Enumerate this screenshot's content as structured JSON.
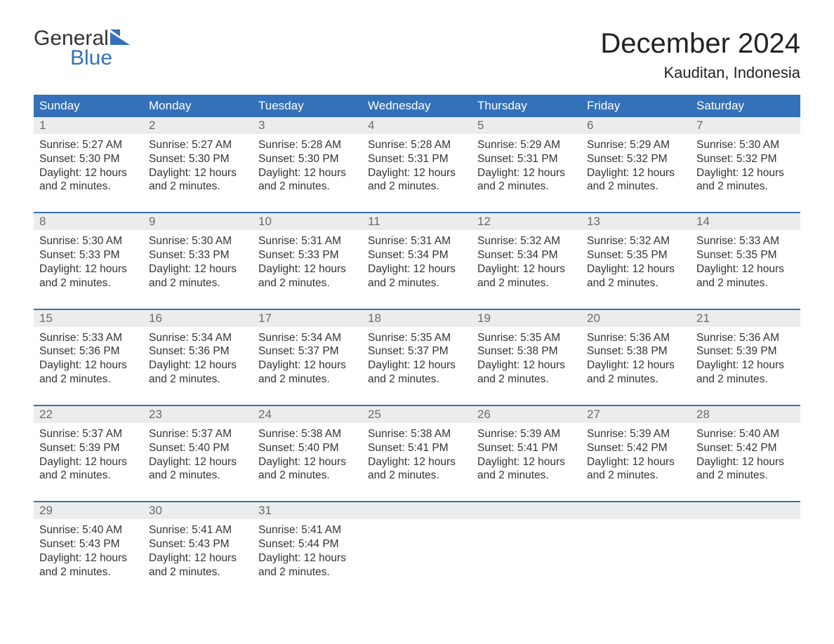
{
  "brand": {
    "word1": "General",
    "word2": "Blue",
    "text_color": "#333333",
    "accent_color": "#3571b8"
  },
  "title": "December 2024",
  "location": "Kauditan, Indonesia",
  "colors": {
    "header_bg": "#3571b8",
    "header_text": "#ffffff",
    "daynum_bg": "#ececec",
    "daynum_text": "#6b6b6b",
    "body_text": "#333333",
    "week_border": "#3571b8",
    "background": "#ffffff"
  },
  "fonts": {
    "title_size_pt": 30,
    "location_size_pt": 17,
    "header_size_pt": 13,
    "body_size_pt": 12
  },
  "day_names": [
    "Sunday",
    "Monday",
    "Tuesday",
    "Wednesday",
    "Thursday",
    "Friday",
    "Saturday"
  ],
  "daylight_text": "Daylight: 12 hours and 2 minutes.",
  "weeks": [
    {
      "days": [
        {
          "n": 1,
          "sunrise": "5:27 AM",
          "sunset": "5:30 PM"
        },
        {
          "n": 2,
          "sunrise": "5:27 AM",
          "sunset": "5:30 PM"
        },
        {
          "n": 3,
          "sunrise": "5:28 AM",
          "sunset": "5:30 PM"
        },
        {
          "n": 4,
          "sunrise": "5:28 AM",
          "sunset": "5:31 PM"
        },
        {
          "n": 5,
          "sunrise": "5:29 AM",
          "sunset": "5:31 PM"
        },
        {
          "n": 6,
          "sunrise": "5:29 AM",
          "sunset": "5:32 PM"
        },
        {
          "n": 7,
          "sunrise": "5:30 AM",
          "sunset": "5:32 PM"
        }
      ]
    },
    {
      "days": [
        {
          "n": 8,
          "sunrise": "5:30 AM",
          "sunset": "5:33 PM"
        },
        {
          "n": 9,
          "sunrise": "5:30 AM",
          "sunset": "5:33 PM"
        },
        {
          "n": 10,
          "sunrise": "5:31 AM",
          "sunset": "5:33 PM"
        },
        {
          "n": 11,
          "sunrise": "5:31 AM",
          "sunset": "5:34 PM"
        },
        {
          "n": 12,
          "sunrise": "5:32 AM",
          "sunset": "5:34 PM"
        },
        {
          "n": 13,
          "sunrise": "5:32 AM",
          "sunset": "5:35 PM"
        },
        {
          "n": 14,
          "sunrise": "5:33 AM",
          "sunset": "5:35 PM"
        }
      ]
    },
    {
      "days": [
        {
          "n": 15,
          "sunrise": "5:33 AM",
          "sunset": "5:36 PM"
        },
        {
          "n": 16,
          "sunrise": "5:34 AM",
          "sunset": "5:36 PM"
        },
        {
          "n": 17,
          "sunrise": "5:34 AM",
          "sunset": "5:37 PM"
        },
        {
          "n": 18,
          "sunrise": "5:35 AM",
          "sunset": "5:37 PM"
        },
        {
          "n": 19,
          "sunrise": "5:35 AM",
          "sunset": "5:38 PM"
        },
        {
          "n": 20,
          "sunrise": "5:36 AM",
          "sunset": "5:38 PM"
        },
        {
          "n": 21,
          "sunrise": "5:36 AM",
          "sunset": "5:39 PM"
        }
      ]
    },
    {
      "days": [
        {
          "n": 22,
          "sunrise": "5:37 AM",
          "sunset": "5:39 PM"
        },
        {
          "n": 23,
          "sunrise": "5:37 AM",
          "sunset": "5:40 PM"
        },
        {
          "n": 24,
          "sunrise": "5:38 AM",
          "sunset": "5:40 PM"
        },
        {
          "n": 25,
          "sunrise": "5:38 AM",
          "sunset": "5:41 PM"
        },
        {
          "n": 26,
          "sunrise": "5:39 AM",
          "sunset": "5:41 PM"
        },
        {
          "n": 27,
          "sunrise": "5:39 AM",
          "sunset": "5:42 PM"
        },
        {
          "n": 28,
          "sunrise": "5:40 AM",
          "sunset": "5:42 PM"
        }
      ]
    },
    {
      "days": [
        {
          "n": 29,
          "sunrise": "5:40 AM",
          "sunset": "5:43 PM"
        },
        {
          "n": 30,
          "sunrise": "5:41 AM",
          "sunset": "5:43 PM"
        },
        {
          "n": 31,
          "sunrise": "5:41 AM",
          "sunset": "5:44 PM"
        },
        null,
        null,
        null,
        null
      ]
    }
  ]
}
